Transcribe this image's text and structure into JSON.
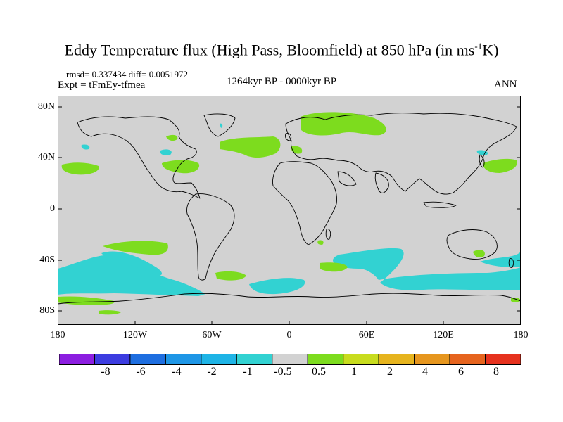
{
  "title": {
    "main": "Eddy Temperature flux (High Pass, Bloomfield) at 850 hPa (in ms",
    "sup": "-1",
    "unit_end": "K)"
  },
  "stats": "rmsd= 0.337434 diff= 0.0051972",
  "experiment": "Expt = tFmEy-tfmea",
  "period": "1264kyr BP - 0000kyr BP",
  "season": "ANN",
  "axes": {
    "lat_labels": [
      "80N",
      "40N",
      "0",
      "40S",
      "80S"
    ],
    "lon_labels": [
      "180",
      "120W",
      "60W",
      "0",
      "60E",
      "120E",
      "180"
    ]
  },
  "colorbar": {
    "labels": [
      "-8",
      "-6",
      "-4",
      "-2",
      "-1",
      "-0.5",
      "0.5",
      "1",
      "2",
      "4",
      "6",
      "8"
    ],
    "colors": [
      "#8c1ee0",
      "#3c3ce0",
      "#1e6ee0",
      "#1e96e6",
      "#1eb4e6",
      "#32d2d2",
      "#d2d2d2",
      "#7ddc1e",
      "#c8dc1e",
      "#e6b41e",
      "#e6961e",
      "#e6641e",
      "#e6321e"
    ]
  },
  "colors": {
    "ocean_background": "#d2d2d2",
    "negative_anomaly": "#32d2d2",
    "positive_anomaly": "#7ddc1e",
    "coastline": "#000000"
  }
}
